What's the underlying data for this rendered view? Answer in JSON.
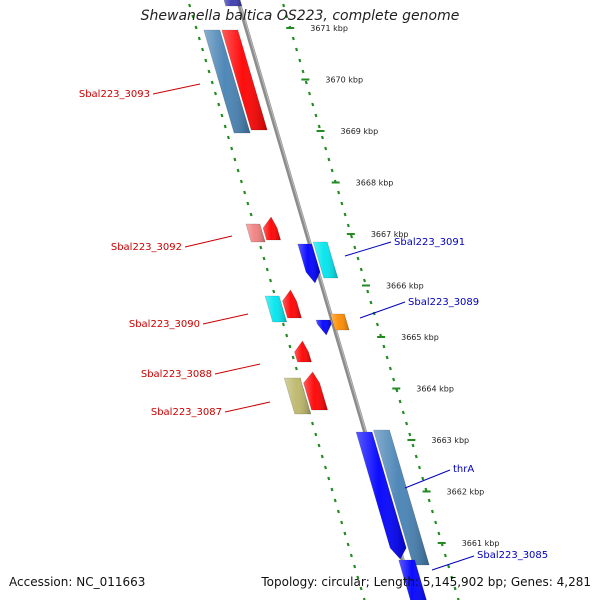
{
  "title": "Shewanella baltica OS223, complete genome",
  "accession": "Accession: NC_011663",
  "summary": "Topology: circular; Length: 5,145,902 bp; Genes: 4,281",
  "colors": {
    "forward_label": "#cc0000",
    "reverse_label": "#0000bb",
    "backbone": "#8c8c8c",
    "dotted_track": "#228b22"
  },
  "ticks": [
    {
      "label": "3671 kbp"
    },
    {
      "label": "3670 kbp"
    },
    {
      "label": "3669 kbp"
    },
    {
      "label": "3668 kbp"
    },
    {
      "label": "3667 kbp"
    },
    {
      "label": "3666 kbp"
    },
    {
      "label": "3665 kbp"
    },
    {
      "label": "3664 kbp"
    },
    {
      "label": "3663 kbp"
    },
    {
      "label": "3662 kbp"
    },
    {
      "label": "3661 kbp"
    }
  ],
  "gene_labels": [
    {
      "text": "Sbal223_3093",
      "strand": "forward"
    },
    {
      "text": "Sbal223_3092",
      "strand": "forward"
    },
    {
      "text": "Sbal223_3090",
      "strand": "forward"
    },
    {
      "text": "Sbal223_3088",
      "strand": "forward"
    },
    {
      "text": "Sbal223_3087",
      "strand": "forward"
    },
    {
      "text": "Sbal223_3091",
      "strand": "reverse"
    },
    {
      "text": "Sbal223_3089",
      "strand": "reverse"
    },
    {
      "text": "thrA",
      "strand": "reverse"
    },
    {
      "text": "Sbal223_3085",
      "strand": "reverse"
    }
  ],
  "features": [
    {
      "name": "partial-top-bar",
      "color": "#3b3bb0"
    },
    {
      "name": "Sbal223_3093",
      "color": "#ff0000"
    },
    {
      "name": "steelblue-top",
      "color": "#4682b4"
    },
    {
      "name": "Sbal223_3092",
      "color": "#ff0000"
    },
    {
      "name": "pink-gene",
      "color": "#f08080"
    },
    {
      "name": "Sbal223_3091",
      "color": "#0000ff"
    },
    {
      "name": "cyan-gene-right",
      "color": "#00e5ee"
    },
    {
      "name": "Sbal223_3090",
      "color": "#ff0000"
    },
    {
      "name": "cyan-gene-left",
      "color": "#00e5ee"
    },
    {
      "name": "Sbal223_3089",
      "color": "#0000ff"
    },
    {
      "name": "orange-gene",
      "color": "#ff8c00"
    },
    {
      "name": "Sbal223_3088",
      "color": "#ff0000"
    },
    {
      "name": "Sbal223_3087",
      "color": "#ff0000"
    },
    {
      "name": "khaki-gene",
      "color": "#bdb76b"
    },
    {
      "name": "thrA",
      "color": "#0000ff"
    },
    {
      "name": "steelblue-bottom",
      "color": "#4682b4"
    },
    {
      "name": "Sbal223_3085",
      "color": "#0000ff"
    }
  ]
}
